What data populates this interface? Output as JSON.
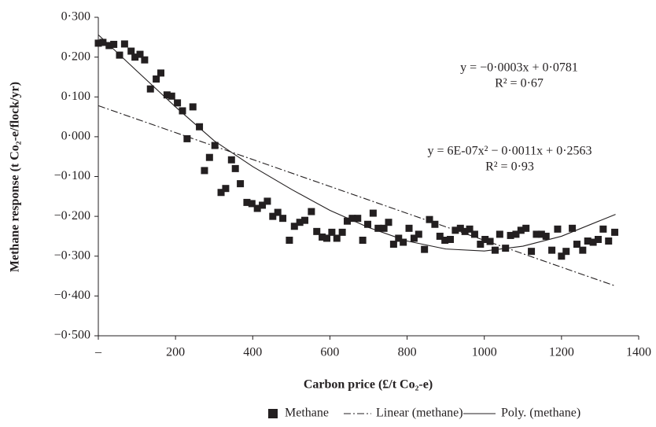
{
  "chart_data": {
    "type": "scatter",
    "x_label": "Carbon price (£/t Co₂-e)",
    "y_label": "Methane response (t Co₂-e/flock/yr)",
    "xlim": [
      0,
      1400
    ],
    "xticks": [
      {
        "value": 0,
        "label": "–"
      },
      200,
      400,
      600,
      800,
      1000,
      1200,
      1400
    ],
    "ylim": [
      -0.5,
      0.3
    ],
    "yticks": [
      {
        "value": 0.3,
        "label": "0·300"
      },
      {
        "value": 0.2,
        "label": "0·200"
      },
      {
        "value": 0.1,
        "label": "0·100"
      },
      {
        "value": 0,
        "label": "0·000"
      },
      {
        "value": -0.1,
        "label": "−0·100"
      },
      {
        "value": -0.2,
        "label": "−0·200"
      },
      {
        "value": -0.3,
        "label": "−0·300"
      },
      {
        "value": -0.4,
        "label": "−0·400"
      },
      {
        "value": -0.5,
        "label": "−0·500"
      }
    ],
    "legend": "bottom",
    "series": [
      {
        "name": "Methane",
        "color": "#231f20",
        "x": [
          0,
          12,
          28,
          40,
          55,
          68,
          85,
          95,
          108,
          120,
          135,
          150,
          162,
          178,
          190,
          205,
          218,
          230,
          245,
          262,
          275,
          288,
          302,
          318,
          330,
          345,
          355,
          368,
          385,
          398,
          412,
          425,
          438,
          452,
          465,
          478,
          495,
          508,
          522,
          535,
          552,
          566,
          580,
          592,
          605,
          618,
          632,
          645,
          658,
          672,
          685,
          698,
          712,
          725,
          740,
          752,
          765,
          778,
          790,
          805,
          818,
          830,
          845,
          858,
          872,
          885,
          898,
          912,
          925,
          938,
          950,
          962,
          975,
          990,
          1002,
          1015,
          1028,
          1040,
          1055,
          1068,
          1082,
          1095,
          1108,
          1122,
          1135,
          1148,
          1160,
          1175,
          1190,
          1200,
          1212,
          1228,
          1240,
          1255,
          1268,
          1282,
          1295,
          1308,
          1322,
          1338
        ],
        "values": [
          0.235,
          0.237,
          0.229,
          0.232,
          0.205,
          0.233,
          0.215,
          0.2,
          0.207,
          0.193,
          0.12,
          0.145,
          0.16,
          0.105,
          0.102,
          0.085,
          0.065,
          -0.005,
          0.075,
          0.025,
          -0.085,
          -0.052,
          -0.022,
          -0.14,
          -0.13,
          -0.058,
          -0.08,
          -0.118,
          -0.165,
          -0.168,
          -0.18,
          -0.172,
          -0.162,
          -0.2,
          -0.19,
          -0.205,
          -0.26,
          -0.225,
          -0.215,
          -0.21,
          -0.188,
          -0.238,
          -0.252,
          -0.255,
          -0.24,
          -0.255,
          -0.24,
          -0.212,
          -0.205,
          -0.205,
          -0.26,
          -0.22,
          -0.192,
          -0.23,
          -0.23,
          -0.215,
          -0.27,
          -0.255,
          -0.265,
          -0.23,
          -0.255,
          -0.245,
          -0.283,
          -0.208,
          -0.22,
          -0.25,
          -0.26,
          -0.258,
          -0.235,
          -0.23,
          -0.238,
          -0.232,
          -0.245,
          -0.27,
          -0.258,
          -0.263,
          -0.285,
          -0.245,
          -0.28,
          -0.248,
          -0.245,
          -0.235,
          -0.23,
          -0.288,
          -0.245,
          -0.245,
          -0.25,
          -0.285,
          -0.232,
          -0.3,
          -0.288,
          -0.23,
          -0.27,
          -0.285,
          -0.262,
          -0.265,
          -0.258,
          -0.232,
          -0.262,
          -0.24
        ]
      }
    ],
    "trendlines": [
      {
        "name": "Linear (methane)",
        "style": "dash-dot",
        "color": "#231f20",
        "x": [
          0,
          1340
        ],
        "values": [
          0.078,
          -0.375
        ]
      },
      {
        "name": "Poly. (methane)",
        "style": "solid",
        "color": "#231f20",
        "x": [
          0,
          100,
          200,
          300,
          400,
          500,
          600,
          700,
          800,
          900,
          1000,
          1100,
          1200,
          1340
        ],
        "values": [
          0.256,
          0.165,
          0.075,
          -0.01,
          -0.075,
          -0.132,
          -0.185,
          -0.228,
          -0.262,
          -0.282,
          -0.287,
          -0.275,
          -0.25,
          -0.195
        ]
      }
    ],
    "annotations": [
      [
        "y = −0·0003x + 0·0781",
        "R² = 0·67"
      ],
      [
        "y = 6E-07x² − 0·0011x + 0·2563",
        "R² = 0·93"
      ]
    ]
  }
}
